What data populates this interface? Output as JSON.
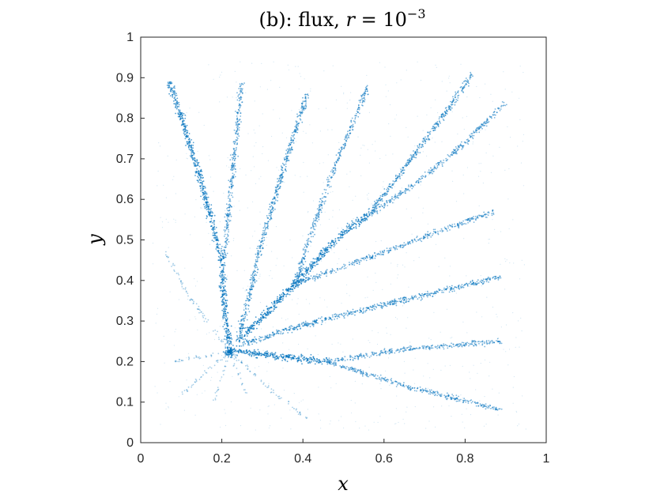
{
  "chart_data": {
    "type": "scatter",
    "title": {
      "prefix": "(b): flux, ",
      "variable": "r",
      "equals": " = 10",
      "exponent": "−3"
    },
    "xlabel": "x",
    "ylabel": "y",
    "xlim": [
      0,
      1
    ],
    "ylim": [
      0,
      1
    ],
    "xticks": [
      "0",
      "0.2",
      "0.4",
      "0.6",
      "0.8",
      "1"
    ],
    "yticks": [
      "0",
      "0.1",
      "0.2",
      "0.3",
      "0.4",
      "0.5",
      "0.6",
      "0.7",
      "0.8",
      "0.9",
      "1"
    ],
    "grid": false,
    "box": true,
    "marker_color": "#0072BD",
    "hub": [
      0.22,
      0.225
    ],
    "branches": [
      {
        "path": [
          [
            0.22,
            0.23
          ],
          [
            0.205,
            0.35
          ],
          [
            0.2,
            0.45
          ],
          [
            0.14,
            0.68
          ],
          [
            0.07,
            0.89
          ]
        ],
        "weight": 0.9
      },
      {
        "path": [
          [
            0.205,
            0.45
          ],
          [
            0.22,
            0.6
          ],
          [
            0.25,
            0.89
          ]
        ],
        "weight": 0.6
      },
      {
        "path": [
          [
            0.24,
            0.25
          ],
          [
            0.3,
            0.5
          ],
          [
            0.36,
            0.7
          ],
          [
            0.41,
            0.86
          ]
        ],
        "weight": 0.7
      },
      {
        "path": [
          [
            0.24,
            0.25
          ],
          [
            0.38,
            0.39
          ],
          [
            0.5,
            0.52
          ],
          [
            0.56,
            0.56
          ]
        ],
        "weight": 1.0
      },
      {
        "path": [
          [
            0.38,
            0.39
          ],
          [
            0.47,
            0.66
          ],
          [
            0.56,
            0.88
          ]
        ],
        "weight": 0.6
      },
      {
        "path": [
          [
            0.56,
            0.56
          ],
          [
            0.63,
            0.65
          ],
          [
            0.72,
            0.77
          ],
          [
            0.82,
            0.91
          ]
        ],
        "weight": 0.7
      },
      {
        "path": [
          [
            0.56,
            0.56
          ],
          [
            0.68,
            0.64
          ],
          [
            0.79,
            0.73
          ],
          [
            0.9,
            0.84
          ]
        ],
        "weight": 0.6
      },
      {
        "path": [
          [
            0.38,
            0.39
          ],
          [
            0.6,
            0.47
          ],
          [
            0.87,
            0.57
          ]
        ],
        "weight": 0.6
      },
      {
        "path": [
          [
            0.24,
            0.24
          ],
          [
            0.4,
            0.29
          ],
          [
            0.6,
            0.34
          ],
          [
            0.89,
            0.41
          ]
        ],
        "weight": 0.7
      },
      {
        "path": [
          [
            0.24,
            0.225
          ],
          [
            0.46,
            0.2
          ]
        ],
        "weight": 1.0
      },
      {
        "path": [
          [
            0.46,
            0.2
          ],
          [
            0.65,
            0.23
          ],
          [
            0.89,
            0.25
          ]
        ],
        "weight": 0.6
      },
      {
        "path": [
          [
            0.46,
            0.2
          ],
          [
            0.65,
            0.14
          ],
          [
            0.89,
            0.08
          ]
        ],
        "weight": 0.6
      },
      {
        "path": [
          [
            0.22,
            0.225
          ],
          [
            0.12,
            0.36
          ],
          [
            0.06,
            0.47
          ]
        ],
        "weight": 0.2
      },
      {
        "path": [
          [
            0.22,
            0.225
          ],
          [
            0.08,
            0.2
          ]
        ],
        "weight": 0.2
      },
      {
        "path": [
          [
            0.22,
            0.225
          ],
          [
            0.1,
            0.12
          ]
        ],
        "weight": 0.2
      },
      {
        "path": [
          [
            0.22,
            0.225
          ],
          [
            0.26,
            0.12
          ]
        ],
        "weight": 0.15
      },
      {
        "path": [
          [
            0.22,
            0.225
          ],
          [
            0.32,
            0.13
          ],
          [
            0.41,
            0.06
          ]
        ],
        "weight": 0.2
      },
      {
        "path": [
          [
            0.22,
            0.225
          ],
          [
            0.18,
            0.1
          ]
        ],
        "weight": 0.15
      }
    ]
  }
}
